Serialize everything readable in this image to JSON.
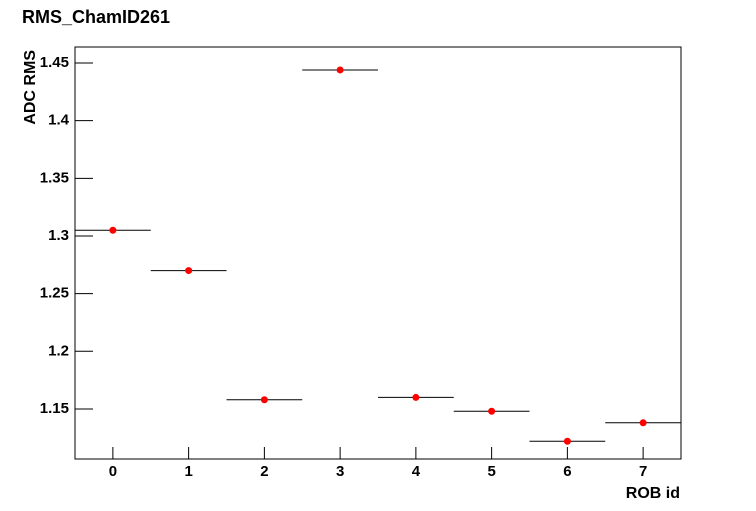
{
  "chart_data": {
    "type": "scatter",
    "title": "RMS_ChamID261",
    "x_label": "ROB id",
    "y_label": "ADC RMS",
    "x": [
      0,
      1,
      2,
      3,
      4,
      5,
      6,
      7
    ],
    "bins": [
      -0.5,
      0.5,
      1.5,
      2.5,
      3.5,
      4.5,
      5.5,
      6.5,
      7.5
    ],
    "values": [
      1.305,
      1.27,
      1.158,
      1.444,
      1.16,
      1.148,
      1.122,
      1.138
    ],
    "color": "#ff0000",
    "xlim": [
      -0.5,
      7.5
    ],
    "xticks": [
      0,
      1,
      2,
      3,
      4,
      5,
      6,
      7
    ],
    "ylim": [
      1.1066,
      1.4639
    ],
    "yticks": [
      1.15,
      1.2,
      1.25,
      1.3,
      1.35,
      1.4,
      1.45
    ]
  }
}
